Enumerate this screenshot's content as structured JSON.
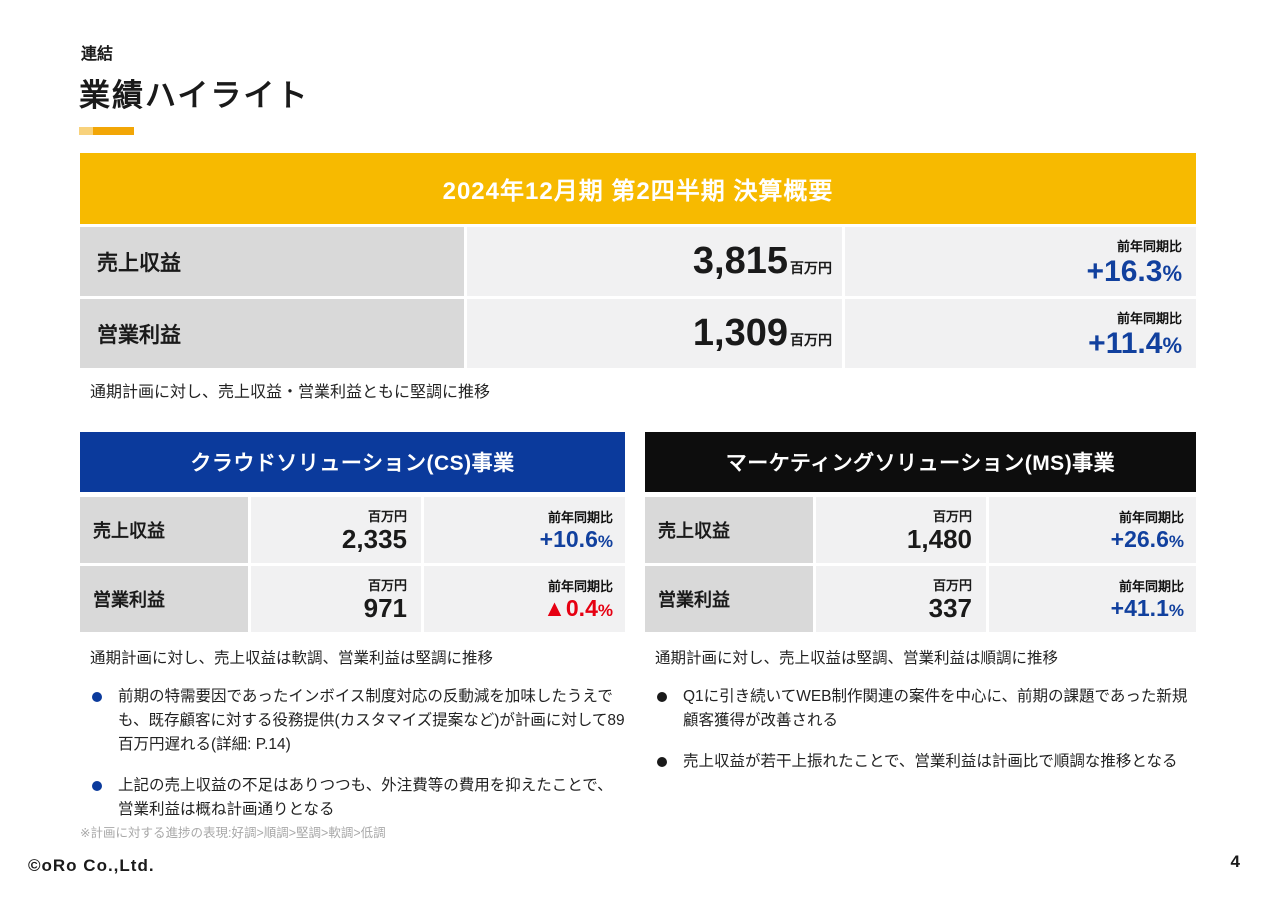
{
  "slide": {
    "tag": "連結",
    "title": "業績ハイライト",
    "page_number": "4",
    "logo_text": "©oRo Co.,Ltd."
  },
  "summary": {
    "header": "2024年12月期 第2四半期 決算概要",
    "rows": [
      {
        "label": "売上収益",
        "value": "3,815",
        "unit": "百万円",
        "yoy_label": "前年同期比",
        "yoy_value": "+16.3",
        "yoy_sign": "%"
      },
      {
        "label": "営業利益",
        "value": "1,309",
        "unit": "百万円",
        "yoy_label": "前年同期比",
        "yoy_value": "+11.4",
        "yoy_sign": "%"
      }
    ],
    "note": "通期計画に対し、売上収益・営業利益ともに堅調に推移"
  },
  "segments": [
    {
      "header": "クラウドソリューション(CS)事業",
      "rows": [
        {
          "label": "売上収益",
          "unit": "百万円",
          "value": "2,335",
          "yoy_label": "前年同期比",
          "yoy_value": "+10.6",
          "yoy_sign": "%",
          "trend": "up"
        },
        {
          "label": "営業利益",
          "unit": "百万円",
          "value": "971",
          "yoy_label": "前年同期比",
          "yoy_value": "▲0.4",
          "yoy_sign": "%",
          "trend": "down"
        }
      ],
      "status": "通期計画に対し、売上収益は軟調、営業利益は堅調に推移",
      "bullets": [
        "前期の特需要因であったインボイス制度対応の反動減を加味したうえでも、既存顧客に対する役務提供(カスタマイズ提案など)が計画に対して89百万円遅れる(詳細: P.14)",
        "上記の売上収益の不足はありつつも、外注費等の費用を抑えたことで、営業利益は概ね計画通りとなる"
      ]
    },
    {
      "header": "マーケティングソリューション(MS)事業",
      "rows": [
        {
          "label": "売上収益",
          "unit": "百万円",
          "value": "1,480",
          "yoy_label": "前年同期比",
          "yoy_value": "+26.6",
          "yoy_sign": "%",
          "trend": "up"
        },
        {
          "label": "営業利益",
          "unit": "百万円",
          "value": "337",
          "yoy_label": "前年同期比",
          "yoy_value": "+41.1",
          "yoy_sign": "%",
          "trend": "up"
        }
      ],
      "status": "通期計画に対し、売上収益は堅調、営業利益は順調に推移",
      "bullets": [
        "Q1に引き続いてWEB制作関連の案件を中心に、前期の課題であった新規顧客獲得が改善される",
        "売上収益が若干上振れたことで、営業利益は計画比で順調な推移となる"
      ]
    }
  ],
  "footnote": "※計画に対する進捗の表現:好調>順調>堅調>軟調>低調",
  "colors": {
    "accent_yellow": "#F7BA00",
    "accent_orange_light": "#F8D27C",
    "accent_orange": "#F2A606",
    "brand_blue": "#0B3A9C",
    "positive_blue": "#11409E",
    "negative_red": "#E60012",
    "label_gray": "#D9D9D9",
    "cell_gray": "#F1F1F2",
    "ms_black": "#0D0D0D",
    "footnote_gray": "#A8A8A8"
  }
}
